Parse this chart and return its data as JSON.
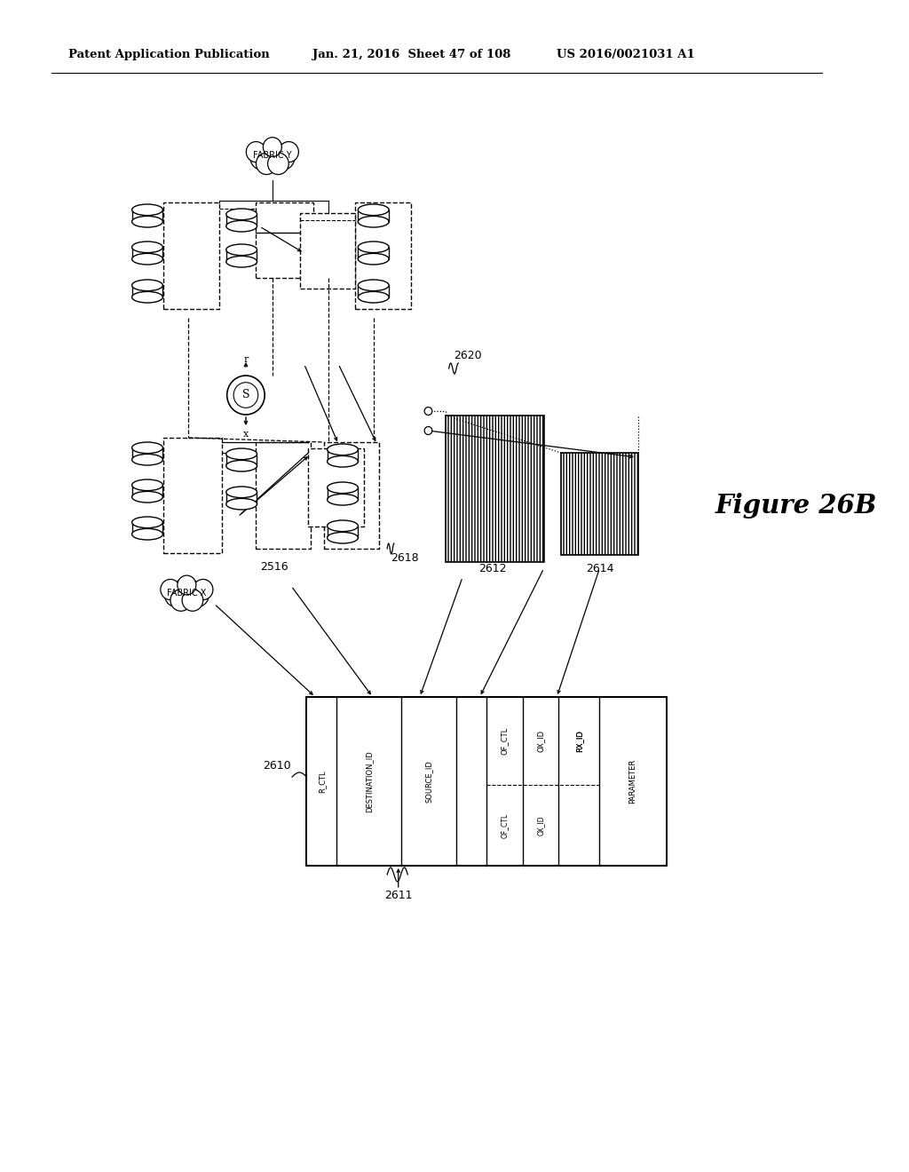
{
  "bg_color": "#ffffff",
  "header_text": "Patent Application Publication",
  "header_date": "Jan. 21, 2016  Sheet 47 of 108",
  "header_patent": "US 2016/0021031 A1",
  "figure_label": "Figure 26B",
  "label_2610": "2610",
  "label_2611": "2611",
  "label_2612": "2612",
  "label_2614": "2614",
  "label_2516": "2516",
  "label_2618": "2618",
  "label_2620": "2620",
  "fabric_x": "FABRIC X",
  "fabric_y": "FABRIC Y"
}
